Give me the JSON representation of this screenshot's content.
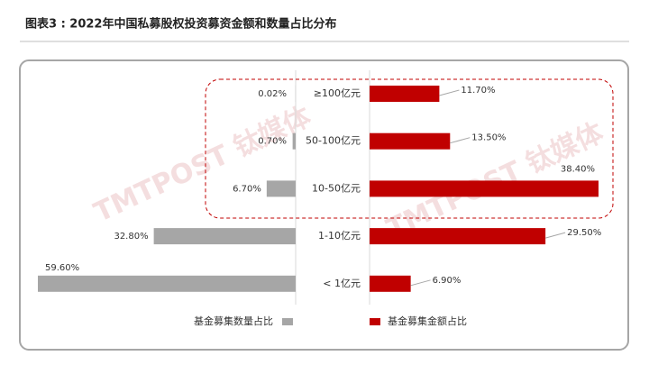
{
  "chart_data": {
    "type": "butterfly",
    "title": "图表3 : 2022年中国私募股权投资募资金额和数量占比分布",
    "watermark": "TMTPOST 钛媒体",
    "categories": [
      "≥100亿元",
      "50-100亿元",
      "10-50亿元",
      "1-10亿元",
      "< 1亿元"
    ],
    "series": [
      {
        "name": "基金募集数量占比",
        "color": "#a6a6a6",
        "side": "left",
        "values": [
          0.02,
          0.7,
          6.7,
          32.8,
          59.6
        ],
        "value_labels": [
          "0.02%",
          "0.70%",
          "6.70%",
          "32.80%",
          "59.60%"
        ]
      },
      {
        "name": "基金募集金额占比",
        "color": "#c00000",
        "side": "right",
        "values": [
          11.7,
          13.5,
          38.4,
          29.5,
          6.9
        ],
        "value_labels": [
          "11.70%",
          "13.50%",
          "38.40%",
          "29.50%",
          "6.90%"
        ]
      }
    ]
  }
}
